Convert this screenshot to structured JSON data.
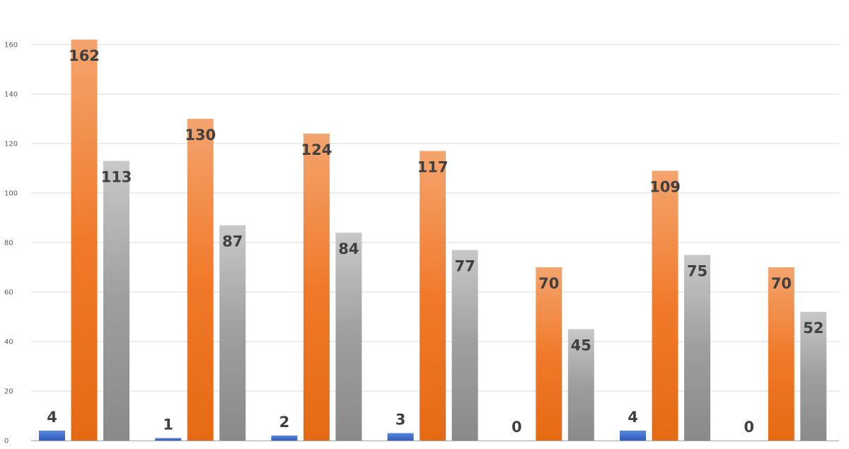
{
  "chart_data": {
    "type": "bar",
    "categories": [
      "",
      "",
      "",
      "",
      "",
      "",
      ""
    ],
    "series": [
      {
        "values": [
          4,
          1,
          2,
          3,
          0,
          4,
          0
        ]
      },
      {
        "values": [
          162,
          130,
          124,
          117,
          70,
          109,
          70
        ]
      },
      {
        "values": [
          113,
          87,
          84,
          77,
          45,
          75,
          52
        ]
      }
    ],
    "colors": {
      "blue": [
        "#5b86dc",
        "#2f5dbd"
      ],
      "orange": [
        "#f4a46e",
        "#f07a2a",
        "#e56a14"
      ],
      "gray": [
        "#c8c8c8",
        "#9e9e9e",
        "#8a8a8a"
      ],
      "grid": "#d9d9d9",
      "axis": "#a6a6a6"
    },
    "ylim": [
      0,
      170
    ],
    "yticks": [
      0,
      20,
      40,
      60,
      80,
      100,
      120,
      140,
      160
    ],
    "show_data_labels": true,
    "grid": true,
    "legend": "none",
    "title": "",
    "xlabel": "",
    "ylabel": ""
  }
}
